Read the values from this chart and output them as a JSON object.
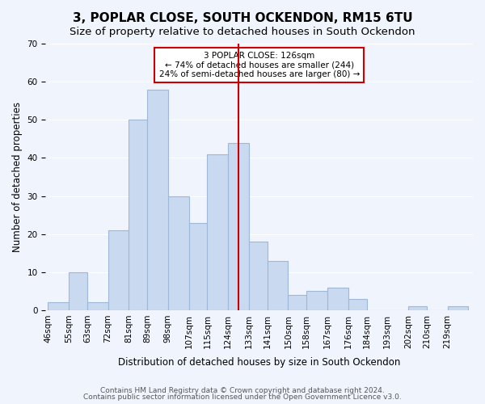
{
  "title": "3, POPLAR CLOSE, SOUTH OCKENDON, RM15 6TU",
  "subtitle": "Size of property relative to detached houses in South Ockendon",
  "xlabel": "Distribution of detached houses by size in South Ockendon",
  "ylabel": "Number of detached properties",
  "bar_labels": [
    "46sqm",
    "55sqm",
    "63sqm",
    "72sqm",
    "81sqm",
    "89sqm",
    "98sqm",
    "107sqm",
    "115sqm",
    "124sqm",
    "133sqm",
    "141sqm",
    "150sqm",
    "158sqm",
    "167sqm",
    "176sqm",
    "184sqm",
    "193sqm",
    "202sqm",
    "210sqm",
    "219sqm"
  ],
  "bar_values": [
    2,
    10,
    2,
    21,
    50,
    58,
    30,
    23,
    41,
    44,
    18,
    13,
    4,
    5,
    6,
    3,
    0,
    0,
    1,
    0,
    1
  ],
  "bin_edges": [
    46,
    55,
    63,
    72,
    81,
    89,
    98,
    107,
    115,
    124,
    133,
    141,
    150,
    158,
    167,
    176,
    184,
    193,
    202,
    210,
    219,
    228
  ],
  "bar_color": "#c8d9f0",
  "bar_edgecolor": "#a0b8d8",
  "vline_x": 128.5,
  "vline_color": "#cc0000",
  "annotation_title": "3 POPLAR CLOSE: 126sqm",
  "annotation_line1": "← 74% of detached houses are smaller (244)",
  "annotation_line2": "24% of semi-detached houses are larger (80) →",
  "annotation_box_color": "#ffffff",
  "annotation_box_edgecolor": "#cc0000",
  "ylim": [
    0,
    70
  ],
  "yticks": [
    0,
    10,
    20,
    30,
    40,
    50,
    60,
    70
  ],
  "footer1": "Contains HM Land Registry data © Crown copyright and database right 2024.",
  "footer2": "Contains public sector information licensed under the Open Government Licence v3.0.",
  "background_color": "#f0f4fc",
  "grid_color": "#ffffff",
  "title_fontsize": 11,
  "subtitle_fontsize": 9.5,
  "axis_label_fontsize": 8.5,
  "tick_fontsize": 7.5,
  "footer_fontsize": 6.5
}
